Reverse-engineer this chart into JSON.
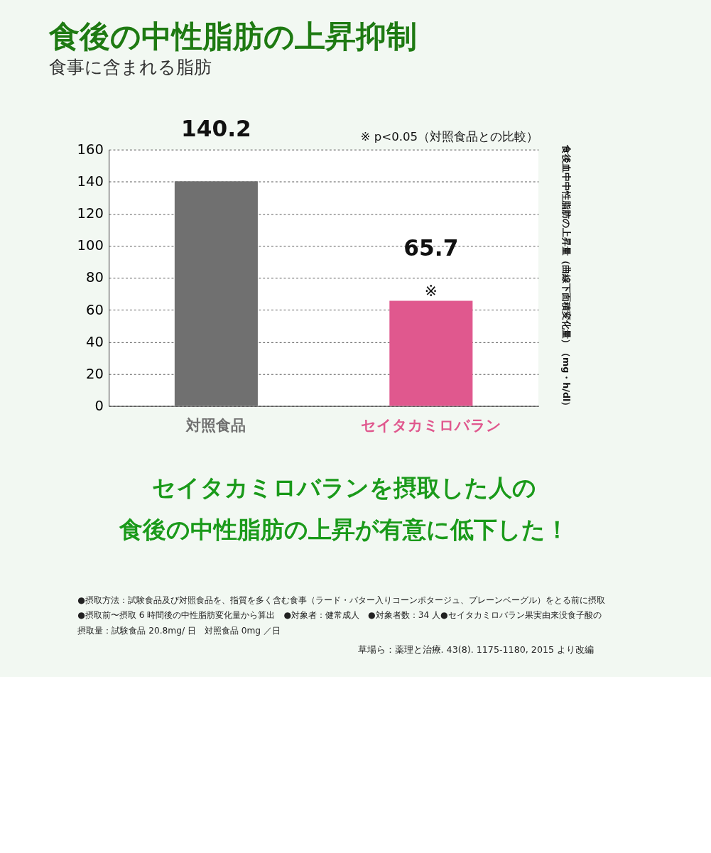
{
  "chart_data": {
    "type": "bar",
    "title": "食後の中性脂肪の上昇抑制",
    "subtitle": "食事に含まれる脂肪",
    "categories": [
      "対照食品",
      "セイタカミロバラン"
    ],
    "values": [
      140.2,
      65.7
    ],
    "colors": [
      "#707070",
      "#e0588e"
    ],
    "data_labels": true,
    "ylabel": "食後血中中性脂肪の上昇量（曲線下面積変化量）（mg・h/dl）",
    "ylim": [
      0,
      160
    ],
    "yticks": [
      0,
      20,
      40,
      60,
      80,
      100,
      120,
      140,
      160
    ],
    "grid": "y",
    "annotations": [
      "※ p<0.05（対照食品との比較）",
      {
        "text": "※",
        "x": "セイタカミロバラン",
        "y": 65.7
      },
      "セイタカミロバランを摂取した人の",
      "食後の中性脂肪の上昇が有意に低下した！",
      "●摂取方法：試験食品及び対照食品を、指質を多く含む食事（ラード・バター入りコーンポタージュ、プレーンベーグル）をとる前に摂取",
      "●摂取前〜摂取 6 時間後の中性脂肪変化量から算出　●対象者：健常成人　●対象者数：34 人●セイタカミロバラン果実由来没食子酸の",
      "摂取量：試験食品 20.8mg/ 日　対照食品 0mg ／日",
      "草場ら：薬理と治療. 43(8). 1175-1180, 2015 より改編"
    ]
  }
}
